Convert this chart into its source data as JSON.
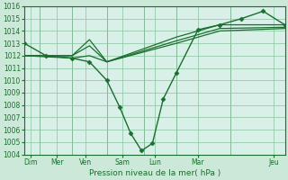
{
  "background_color": "#cce8d8",
  "plot_bg_color": "#d8f0e8",
  "grid_color": "#88c4a0",
  "line_color": "#1a6e2e",
  "marker_color": "#1a6e2e",
  "xlabel_text": "Pression niveau de la mer( hPa )",
  "ylim": [
    1004,
    1016
  ],
  "xlim": [
    0,
    12
  ],
  "yticks": [
    1004,
    1005,
    1006,
    1007,
    1008,
    1009,
    1010,
    1011,
    1012,
    1013,
    1014,
    1015,
    1016
  ],
  "xtick_labels": [
    "Dim",
    "Mer",
    "Ven",
    "Sam",
    "Lun",
    "Mar",
    "Jeu"
  ],
  "xtick_positions": [
    0.3,
    1.5,
    2.8,
    4.5,
    6.0,
    8.0,
    11.5
  ],
  "vlines": [
    0.7,
    2.2,
    3.8,
    5.5,
    7.0,
    9.5,
    12.0
  ],
  "series": [
    {
      "x": [
        0.0,
        1.0,
        2.2,
        3.0,
        3.8,
        4.4,
        4.9,
        5.4,
        5.9,
        6.4,
        7.0,
        8.0,
        9.0,
        10.0,
        11.0,
        12.0
      ],
      "y": [
        1013.0,
        1012.0,
        1011.8,
        1011.5,
        1010.0,
        1007.8,
        1005.7,
        1004.3,
        1004.9,
        1008.5,
        1010.6,
        1014.1,
        1014.5,
        1015.0,
        1015.6,
        1014.5
      ],
      "with_markers": true,
      "lw": 1.0
    },
    {
      "x": [
        0.0,
        2.2,
        3.0,
        3.8,
        7.0,
        9.0,
        12.0
      ],
      "y": [
        1012.0,
        1012.0,
        1013.3,
        1011.5,
        1013.0,
        1014.0,
        1014.2
      ],
      "with_markers": false,
      "lw": 0.9
    },
    {
      "x": [
        0.0,
        2.2,
        3.0,
        3.8,
        7.0,
        9.0,
        12.0
      ],
      "y": [
        1012.0,
        1012.0,
        1012.8,
        1011.5,
        1013.2,
        1014.2,
        1014.3
      ],
      "with_markers": false,
      "lw": 0.9
    },
    {
      "x": [
        0.0,
        2.2,
        3.0,
        3.8,
        7.0,
        9.0,
        12.0
      ],
      "y": [
        1012.0,
        1011.8,
        1012.0,
        1011.5,
        1013.5,
        1014.5,
        1014.5
      ],
      "with_markers": false,
      "lw": 0.9
    }
  ]
}
